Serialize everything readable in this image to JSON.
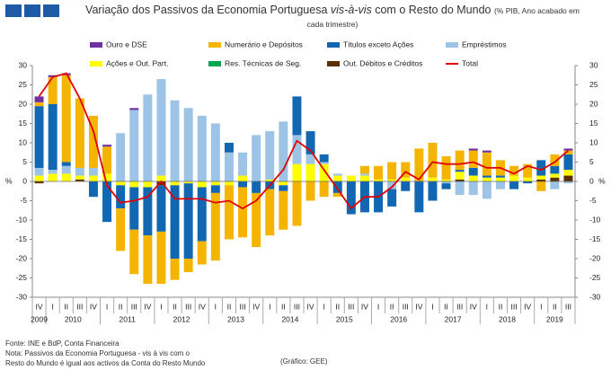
{
  "chart_data": {
    "type": "stacked_bar_line",
    "title": "Variação dos Passivos da Economia Portuguesa",
    "title_italic": "vis-à-vis",
    "title_rest": "com o Resto do Mundo",
    "subtitle": "(% PIB, Ano acabado em cada trimestre)",
    "y_label": "%",
    "y2_label": "%",
    "categories": [
      "IV",
      "I",
      "II",
      "III",
      "IV",
      "I",
      "II",
      "III",
      "IV",
      "I",
      "II",
      "III",
      "IV",
      "I",
      "II",
      "III",
      "IV",
      "I",
      "II",
      "III",
      "IV",
      "I",
      "II",
      "III",
      "IV",
      "I",
      "II",
      "III",
      "IV",
      "I",
      "II",
      "III",
      "IV",
      "I",
      "II",
      "III",
      "IV",
      "I",
      "II",
      "III"
    ],
    "years": [
      "2009",
      "2010",
      "2011",
      "2012",
      "2013",
      "2014",
      "2015",
      "2016",
      "2017",
      "2018",
      "2019"
    ],
    "series": [
      {
        "name": "Ouro e DSE",
        "color": "#7030a0",
        "values": [
          1.5,
          0.5,
          0.5,
          0,
          0,
          0.5,
          0,
          0.5,
          0,
          0,
          0,
          0,
          0,
          0,
          0,
          0,
          0,
          0,
          0,
          0,
          0,
          0,
          0,
          0,
          0,
          0,
          0,
          0,
          0,
          0,
          0,
          0,
          0.5,
          0.5,
          0,
          0,
          0,
          0,
          0,
          0.5
        ]
      },
      {
        "name": "Numerário e Depósitos",
        "color": "#f5b400",
        "values": [
          1,
          7,
          22.5,
          18,
          13.5,
          7,
          -11,
          -11.5,
          -12.5,
          -13.5,
          -5.5,
          -3.5,
          -6,
          -17.5,
          -14,
          -13,
          -14,
          -12,
          -10,
          -11.5,
          -5,
          -4,
          -1,
          0,
          2,
          3.5,
          4.5,
          4,
          8.5,
          9,
          6,
          5,
          4.5,
          6,
          4,
          2.5,
          3.5,
          -2.5,
          3,
          1
        ]
      },
      {
        "name": "Títulos exceto Ações",
        "color": "#1167b1",
        "values": [
          16,
          17,
          1,
          0,
          -4,
          -10.5,
          -6,
          -11,
          -12.5,
          -12,
          -19,
          -19.5,
          -14,
          -2,
          2.5,
          -1.5,
          -3,
          -2,
          -1.5,
          10,
          6,
          2,
          -3,
          -8.5,
          -8,
          -8,
          -4.5,
          -2.5,
          -8,
          -5,
          -1.5,
          0.5,
          2,
          0.5,
          0.5,
          -2,
          -0.5,
          4,
          2,
          4
        ]
      },
      {
        "name": "Empréstimos",
        "color": "#9dc3e6",
        "values": [
          2,
          1,
          2,
          2,
          2,
          0,
          12.5,
          18.5,
          22.5,
          25,
          21,
          19,
          17,
          15,
          7.5,
          6,
          12,
          12.5,
          15.5,
          7.5,
          2.5,
          0.5,
          0.5,
          0,
          0.5,
          0,
          -2,
          0,
          0,
          0,
          -0.5,
          -3.5,
          -3.5,
          -4.5,
          -2,
          0,
          0,
          0,
          -2,
          -0.5
        ]
      },
      {
        "name": "Ações e Out. Part.",
        "color": "#ffff00",
        "values": [
          1.5,
          2,
          2,
          1,
          1.5,
          2,
          -1,
          -1.5,
          -1.5,
          1.5,
          -1,
          -0.5,
          -1.5,
          -1,
          -1,
          1.5,
          0,
          0.5,
          -1,
          4.5,
          4.5,
          4.5,
          1.5,
          1.5,
          1.5,
          0.5,
          0.5,
          1,
          0,
          1,
          0.5,
          2,
          1.5,
          1,
          1,
          1.5,
          1,
          1,
          1,
          1.5
        ]
      },
      {
        "name": "Res. Técnicas de Seg.",
        "color": "#00a650",
        "values": [
          0,
          0,
          0,
          0,
          0,
          0,
          0,
          0,
          0,
          0,
          0,
          0,
          0,
          0,
          0,
          0,
          0,
          0,
          0,
          0,
          0,
          0,
          0,
          0,
          0,
          0,
          0,
          0,
          0,
          0,
          0,
          0,
          0,
          0,
          0,
          0,
          0,
          0,
          0,
          0
        ]
      },
      {
        "name": "Out. Débitos e Créditos",
        "color": "#5a3000",
        "values": [
          -0.5,
          0,
          0,
          0.5,
          0,
          0,
          0,
          0,
          0,
          -1,
          0,
          0,
          0,
          0,
          0,
          0,
          0,
          0,
          0,
          0,
          0,
          0,
          0,
          0,
          0,
          0,
          0,
          0,
          0,
          0,
          0,
          0.5,
          0,
          0,
          0,
          0,
          0,
          0.5,
          1,
          1.5
        ]
      }
    ],
    "line_series": {
      "name": "Total",
      "color": "#e00000",
      "values": [
        22,
        27,
        28,
        21.5,
        13,
        -1,
        -5.5,
        -5,
        -4,
        0,
        -4.5,
        -4.5,
        -4.5,
        -5.5,
        -5,
        -7,
        -5,
        -1,
        3,
        10.5,
        8,
        3,
        -2,
        -7,
        -4,
        -4,
        -1.5,
        2.5,
        0.5,
        5,
        4.5,
        4.5,
        5,
        3.5,
        3.5,
        2,
        4,
        3,
        5,
        8
      ]
    },
    "ylim": [
      -30,
      30
    ],
    "yticks": [
      -30,
      -25,
      -20,
      -15,
      -10,
      -5,
      0,
      5,
      10,
      15,
      20,
      25,
      30
    ],
    "y2lim": [
      -30,
      30
    ],
    "y2ticks": [
      -30,
      -25,
      -20,
      -15,
      -10,
      -5,
      0,
      5,
      10,
      15,
      20,
      25,
      30
    ],
    "grid": false,
    "legend": "top",
    "source": "Fonte: INE e BdP, Conta Financeira",
    "note_1": "Nota: Passivos da Economia Portuguesa - vis à vis com o",
    "note_2": "Resto do Mundo é igual aos activos da Conta do Resto Mundo",
    "credit": "(Gráfico: GEE)"
  }
}
